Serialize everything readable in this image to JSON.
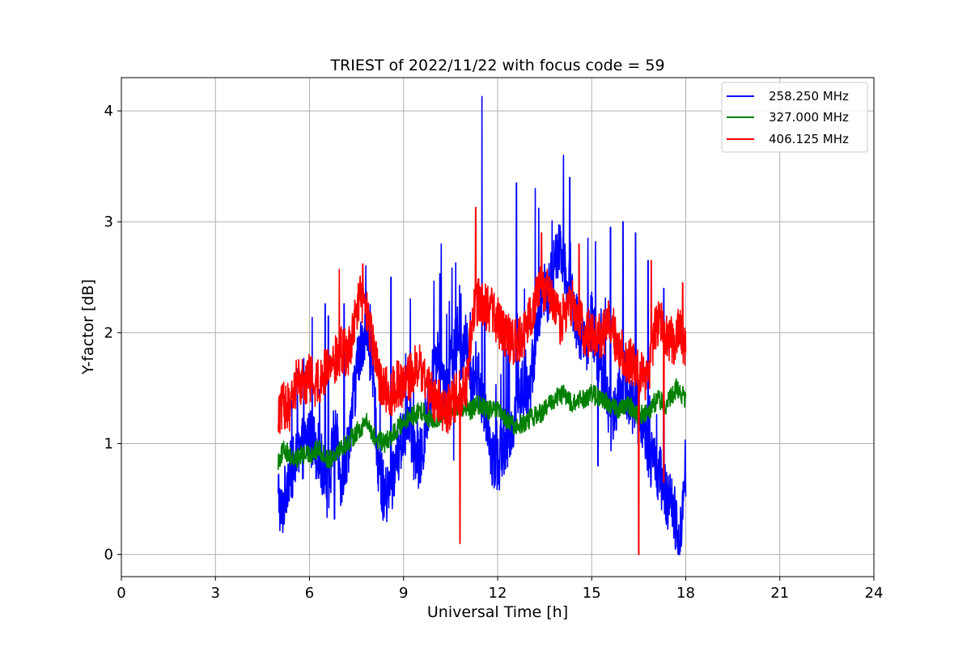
{
  "chart_data": {
    "type": "line",
    "title": "TRIEST of 2022/11/22 with focus code = 59",
    "xlabel": "Universal Time [h]",
    "ylabel": "Y-factor [dB]",
    "xlim": [
      0,
      24
    ],
    "ylim": [
      -0.2,
      4.3
    ],
    "xticks": [
      0,
      3,
      6,
      9,
      12,
      15,
      18,
      21,
      24
    ],
    "yticks": [
      0,
      1,
      2,
      3,
      4
    ],
    "grid": true,
    "legend_position": "top-right",
    "series": [
      {
        "name": "258.250 MHz",
        "color": "#0000ff",
        "x": [
          5.0,
          5.1,
          5.2,
          5.3,
          5.5,
          5.7,
          6.0,
          6.3,
          6.5,
          6.6,
          6.8,
          7.0,
          7.2,
          7.4,
          7.6,
          7.8,
          8.0,
          8.2,
          8.4,
          8.6,
          8.8,
          9.0,
          9.2,
          9.4,
          9.6,
          9.8,
          10.0,
          10.2,
          10.4,
          10.6,
          10.8,
          11.0,
          11.2,
          11.4,
          11.6,
          11.8,
          12.0,
          12.2,
          12.4,
          12.6,
          12.8,
          13.0,
          13.2,
          13.4,
          13.6,
          13.8,
          14.0,
          14.2,
          14.4,
          14.6,
          14.8,
          15.0,
          15.2,
          15.4,
          15.6,
          15.8,
          16.0,
          16.2,
          16.4,
          16.6,
          16.8,
          17.0,
          17.2,
          17.4,
          17.6,
          17.8,
          18.0
        ],
        "y": [
          0.6,
          0.35,
          0.5,
          0.7,
          0.8,
          0.9,
          1.1,
          0.9,
          0.7,
          0.5,
          1.2,
          0.7,
          0.9,
          1.4,
          1.8,
          2.1,
          1.7,
          0.8,
          0.5,
          0.6,
          0.9,
          1.1,
          1.2,
          0.8,
          0.9,
          1.3,
          1.8,
          1.7,
          1.5,
          1.9,
          1.8,
          1.9,
          1.5,
          1.6,
          1.2,
          0.9,
          0.8,
          1.0,
          1.1,
          1.3,
          1.5,
          1.4,
          1.9,
          2.4,
          2.3,
          2.6,
          2.8,
          2.5,
          2.3,
          2.0,
          1.9,
          2.1,
          1.8,
          1.6,
          1.2,
          1.4,
          1.6,
          1.4,
          1.3,
          1.2,
          0.9,
          0.8,
          0.7,
          0.5,
          0.4,
          0.2,
          0.6
        ],
        "peaks": [
          [
            6.5,
            2.26
          ],
          [
            6.6,
            2.15
          ],
          [
            7.1,
            2.26
          ],
          [
            8.6,
            2.5
          ],
          [
            10.2,
            2.8
          ],
          [
            11.5,
            4.13
          ],
          [
            12.6,
            3.35
          ],
          [
            13.2,
            3.3
          ],
          [
            14.1,
            3.6
          ],
          [
            14.3,
            3.4
          ],
          [
            15.6,
            2.95
          ],
          [
            16.0,
            3.0
          ],
          [
            16.4,
            2.9
          ],
          [
            16.8,
            2.65
          ],
          [
            17.3,
            2.4
          ]
        ],
        "dips": [
          [
            5.0,
            0.55
          ],
          [
            5.1,
            0.28
          ],
          [
            6.8,
            0.32
          ],
          [
            10.6,
            0.85
          ],
          [
            15.2,
            0.8
          ],
          [
            17.8,
            0.0
          ]
        ]
      },
      {
        "name": "327.000 MHz",
        "color": "#008000",
        "x": [
          5.0,
          5.2,
          5.5,
          5.8,
          6.0,
          6.3,
          6.6,
          6.9,
          7.2,
          7.5,
          7.8,
          8.1,
          8.4,
          8.7,
          9.0,
          9.3,
          9.6,
          9.9,
          10.2,
          10.5,
          10.8,
          11.1,
          11.4,
          11.7,
          12.0,
          12.3,
          12.6,
          12.9,
          13.2,
          13.5,
          13.8,
          14.1,
          14.4,
          14.7,
          15.0,
          15.3,
          15.6,
          15.9,
          16.2,
          16.5,
          16.8,
          17.1,
          17.4,
          17.7,
          18.0
        ],
        "y": [
          0.85,
          0.95,
          0.85,
          0.9,
          0.9,
          0.95,
          0.85,
          0.95,
          1.0,
          1.1,
          1.2,
          1.05,
          1.0,
          1.1,
          1.2,
          1.25,
          1.3,
          1.2,
          1.25,
          1.3,
          1.35,
          1.3,
          1.35,
          1.3,
          1.3,
          1.2,
          1.15,
          1.2,
          1.25,
          1.3,
          1.4,
          1.45,
          1.35,
          1.4,
          1.45,
          1.4,
          1.35,
          1.3,
          1.35,
          1.25,
          1.3,
          1.4,
          1.35,
          1.5,
          1.4
        ]
      },
      {
        "name": "406.125 MHz",
        "color": "#ff0000",
        "x": [
          5.0,
          5.2,
          5.4,
          5.6,
          5.8,
          6.0,
          6.2,
          6.4,
          6.6,
          6.8,
          7.0,
          7.2,
          7.4,
          7.6,
          7.8,
          8.0,
          8.2,
          8.4,
          8.6,
          8.8,
          9.0,
          9.2,
          9.4,
          9.6,
          9.8,
          10.0,
          10.2,
          10.4,
          10.6,
          10.8,
          11.0,
          11.2,
          11.4,
          11.6,
          11.8,
          12.0,
          12.2,
          12.4,
          12.6,
          12.8,
          13.0,
          13.2,
          13.4,
          13.6,
          13.8,
          14.0,
          14.2,
          14.4,
          14.6,
          14.8,
          15.0,
          15.2,
          15.4,
          15.6,
          15.8,
          16.0,
          16.2,
          16.4,
          16.6,
          16.8,
          17.0,
          17.2,
          17.4,
          17.6,
          17.8,
          18.0
        ],
        "y": [
          1.25,
          1.35,
          1.3,
          1.6,
          1.55,
          1.6,
          1.55,
          1.6,
          1.7,
          1.75,
          1.85,
          1.8,
          2.0,
          2.35,
          2.2,
          1.9,
          1.6,
          1.5,
          1.45,
          1.55,
          1.5,
          1.6,
          1.7,
          1.65,
          1.5,
          1.4,
          1.35,
          1.3,
          1.4,
          1.45,
          1.5,
          2.2,
          2.3,
          2.25,
          2.2,
          2.1,
          2.0,
          1.95,
          1.9,
          1.95,
          2.1,
          2.3,
          2.4,
          2.35,
          2.2,
          2.1,
          2.2,
          2.3,
          2.1,
          2.0,
          2.0,
          1.95,
          2.0,
          2.1,
          1.9,
          1.8,
          1.75,
          1.7,
          1.6,
          1.55,
          2.0,
          2.1,
          2.0,
          1.9,
          2.1,
          1.8
        ],
        "peaks": [
          [
            6.95,
            2.57
          ],
          [
            7.7,
            2.62
          ],
          [
            11.3,
            3.13
          ],
          [
            13.4,
            2.9
          ],
          [
            14.6,
            2.8
          ],
          [
            16.9,
            2.65
          ],
          [
            17.9,
            2.45
          ]
        ],
        "dips": [
          [
            10.8,
            0.1
          ],
          [
            16.5,
            0.0
          ],
          [
            17.3,
            0.65
          ]
        ]
      }
    ]
  }
}
